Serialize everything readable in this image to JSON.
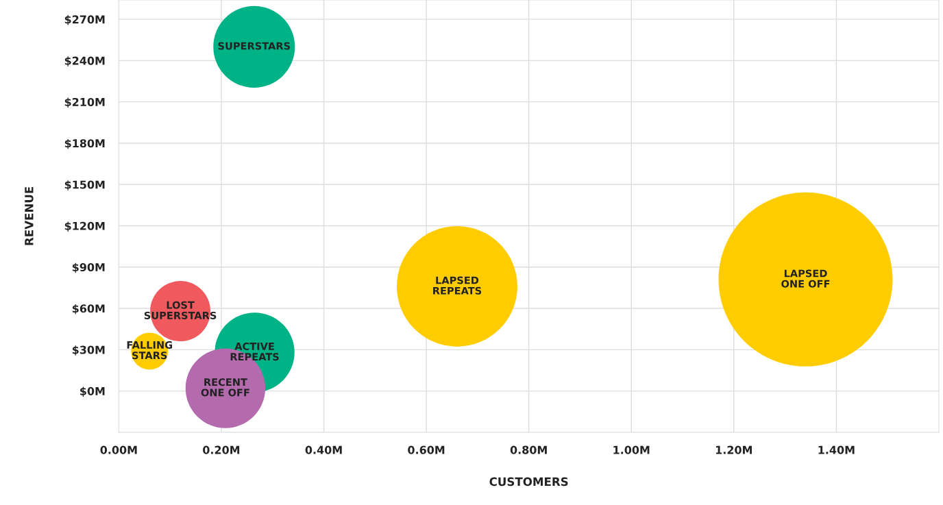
{
  "chart_data": {
    "type": "bubble",
    "xlabel": "CUSTOMERS",
    "ylabel": "REVENUE",
    "xlim": [
      0,
      1.6
    ],
    "ylim": [
      -30,
      284
    ],
    "xticks": [
      {
        "value": 0,
        "label": "0.00M"
      },
      {
        "value": 0.2,
        "label": "0.20M"
      },
      {
        "value": 0.4,
        "label": "0.40M"
      },
      {
        "value": 0.6,
        "label": "0.60M"
      },
      {
        "value": 0.8,
        "label": "0.80M"
      },
      {
        "value": 1.0,
        "label": "1.00M"
      },
      {
        "value": 1.2,
        "label": "1.20M"
      },
      {
        "value": 1.4,
        "label": "1.40M"
      }
    ],
    "yticks": [
      {
        "value": 0,
        "label": "$0M"
      },
      {
        "value": 30,
        "label": "$30M"
      },
      {
        "value": 60,
        "label": "$60M"
      },
      {
        "value": 90,
        "label": "$90M"
      },
      {
        "value": 120,
        "label": "$120M"
      },
      {
        "value": 150,
        "label": "$150M"
      },
      {
        "value": 180,
        "label": "$180M"
      },
      {
        "value": 210,
        "label": "$210M"
      },
      {
        "value": 240,
        "label": "$240M"
      },
      {
        "value": 270,
        "label": "$270M"
      }
    ],
    "grid": true,
    "legend": false,
    "series": [
      {
        "name": "SUPERSTARS",
        "color": "#00b386",
        "x": [
          0.264
        ],
        "values": [
          250
        ],
        "sizes": [
          0.22
        ]
      },
      {
        "name": "LOST\nSUPERSTARS",
        "color": "#f05a5e",
        "x": [
          0.12
        ],
        "values": [
          58
        ],
        "sizes": [
          0.12
        ]
      },
      {
        "name": "FALLING\nSTARS",
        "color": "#ffcc00",
        "x": [
          0.06
        ],
        "values": [
          29
        ],
        "sizes": [
          0.045
        ]
      },
      {
        "name": "ACTIVE\nREPEATS",
        "color": "#00b386",
        "x": [
          0.265
        ],
        "values": [
          28
        ],
        "sizes": [
          0.21
        ]
      },
      {
        "name": "RECENT\nONE OFF",
        "color": "#b36bad",
        "x": [
          0.208
        ],
        "values": [
          2
        ],
        "sizes": [
          0.21
        ]
      },
      {
        "name": "LAPSED\nREPEATS",
        "color": "#ffcc00",
        "x": [
          0.66
        ],
        "values": [
          76
        ],
        "sizes": [
          0.48
        ]
      },
      {
        "name": "LAPSED\nONE OFF",
        "color": "#ffcc00",
        "x": [
          1.34
        ],
        "values": [
          81
        ],
        "sizes": [
          1
        ]
      }
    ]
  }
}
